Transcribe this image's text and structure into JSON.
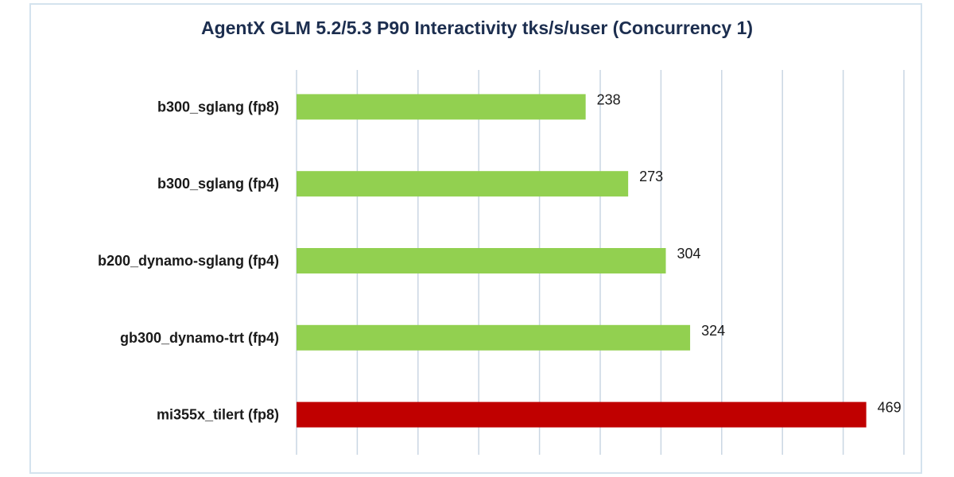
{
  "chart_data": {
    "type": "bar",
    "orientation": "horizontal",
    "title": "AgentX GLM 5.2/5.3 P90 Interactivity tks/s/user (Concurrency 1)",
    "xlabel": "",
    "ylabel": "",
    "categories": [
      "b300_sglang (fp8)",
      "b300_sglang (fp4)",
      "b200_dynamo-sglang (fp4)",
      "gb300_dynamo-trt (fp4)",
      "mi355x_tilert (fp8)"
    ],
    "values": [
      238,
      273,
      304,
      324,
      469
    ],
    "data_labels": [
      "238",
      "273",
      "304",
      "324",
      "469"
    ],
    "bar_colors": [
      "#92d050",
      "#92d050",
      "#92d050",
      "#92d050",
      "#c00000"
    ],
    "xlim": [
      0,
      500
    ],
    "x_gridline_step": 50,
    "grid": true,
    "tick_labels_shown": false,
    "legend": "none",
    "colors": {
      "title": "#1c2e4f",
      "gridline": "#c9d6e3",
      "frame": "#d4e3ee"
    }
  }
}
